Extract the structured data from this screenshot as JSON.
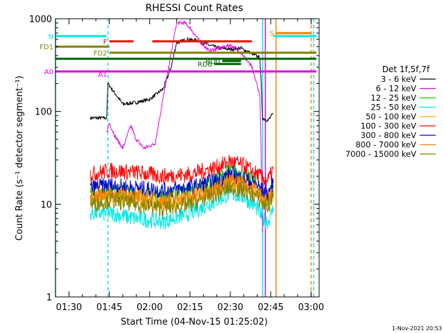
{
  "chart_data": {
    "type": "line",
    "title": "RHESSI Count Rates",
    "xlabel": "Start Time (04-Nov-15 01:25:02)",
    "ylabel": "Count Rate (s⁻¹ detector segment⁻¹)",
    "yscale": "log",
    "ylim": [
      1,
      1000
    ],
    "xlim": [
      "01:25",
      "03:03"
    ],
    "x_ticks": [
      "01:30",
      "01:45",
      "02:00",
      "02:15",
      "02:30",
      "02:45",
      "03:00"
    ],
    "y_ticks": [
      "1",
      "10",
      "100",
      "1000"
    ],
    "grid": false,
    "legend_title": "Det 1f,5f,7f",
    "legend_position": "right",
    "footer": "1-Nov-2021 20:53",
    "series": [
      {
        "name": "3 - 6 keV",
        "color": "#000000",
        "x": [
          "01:38",
          "01:41",
          "01:44",
          "01:44:30",
          "01:50",
          "01:55",
          "02:00",
          "02:05",
          "02:08",
          "02:10",
          "02:14",
          "02:18",
          "02:22",
          "02:26",
          "02:30",
          "02:34",
          "02:38",
          "02:41",
          "02:42",
          "02:44",
          "02:46"
        ],
        "y": [
          85,
          85,
          85,
          200,
          120,
          125,
          135,
          175,
          300,
          550,
          600,
          580,
          520,
          480,
          470,
          480,
          420,
          380,
          85,
          80,
          95
        ]
      },
      {
        "name": "6 - 12 keV",
        "color": "#e000e0",
        "x": [
          "01:44",
          "01:45",
          "01:47",
          "01:50",
          "01:53",
          "01:55",
          "01:58",
          "02:02",
          "02:06",
          "02:10",
          "02:13",
          "02:15",
          "02:18",
          "02:22",
          "02:26",
          "02:30",
          "02:34",
          "02:38",
          "02:41",
          "02:42"
        ],
        "y": [
          60,
          75,
          55,
          40,
          70,
          50,
          40,
          45,
          200,
          900,
          900,
          800,
          600,
          450,
          480,
          520,
          430,
          300,
          150,
          5
        ]
      },
      {
        "name": "12 - 25 keV",
        "color": "#00cc00",
        "x": [
          "01:38",
          "01:45",
          "01:55",
          "02:05",
          "02:15",
          "02:25",
          "02:30",
          "02:35",
          "02:40",
          "02:42",
          "02:44",
          "02:46"
        ],
        "y": [
          13,
          14,
          13,
          12,
          14,
          18,
          23,
          21,
          16,
          12,
          11,
          15
        ]
      },
      {
        "name": "25 - 50 keV",
        "color": "#00e8e8",
        "x": [
          "01:38",
          "01:45",
          "01:55",
          "02:05",
          "02:15",
          "02:25",
          "02:30",
          "02:35",
          "02:40",
          "02:42",
          "02:44",
          "02:46"
        ],
        "y": [
          8,
          8,
          7,
          6.5,
          8,
          11,
          13,
          12,
          9,
          7,
          6.5,
          9
        ]
      },
      {
        "name": "50 - 100 keV",
        "color": "#ffb000",
        "x": [
          "01:38",
          "01:45",
          "01:55",
          "02:05",
          "02:15",
          "02:25",
          "02:30",
          "02:35",
          "02:40",
          "02:42",
          "02:44",
          "02:46"
        ],
        "y": [
          11,
          12,
          11,
          10,
          11,
          14,
          17,
          16,
          13,
          11,
          10,
          13
        ]
      },
      {
        "name": "100 - 300 keV",
        "color": "#ff0000",
        "x": [
          "01:38",
          "01:45",
          "01:55",
          "02:05",
          "02:15",
          "02:25",
          "02:30",
          "02:35",
          "02:40",
          "02:42",
          "02:44",
          "02:46"
        ],
        "y": [
          21,
          23,
          22,
          20,
          21,
          25,
          29,
          26,
          21,
          19,
          18,
          24
        ]
      },
      {
        "name": "300 - 800 keV",
        "color": "#0000cc",
        "x": [
          "01:38",
          "01:45",
          "01:55",
          "02:05",
          "02:15",
          "02:25",
          "02:30",
          "02:35",
          "02:40",
          "02:42",
          "02:44",
          "02:46"
        ],
        "y": [
          15,
          16,
          15,
          14,
          15,
          18,
          21,
          19,
          16,
          14,
          13,
          17
        ]
      },
      {
        "name": "800 - 7000 keV",
        "color": "#ff7f00",
        "x": [
          "01:38",
          "01:45",
          "01:55",
          "02:05",
          "02:15",
          "02:25",
          "02:30",
          "02:35",
          "02:40",
          "02:42",
          "02:44",
          "02:46"
        ],
        "y": [
          12,
          13,
          12,
          11,
          12,
          15,
          18,
          17,
          14,
          12,
          11,
          14
        ]
      },
      {
        "name": "7000 - 15000 keV",
        "color": "#808000",
        "x": [
          "01:38",
          "01:45",
          "01:55",
          "02:05",
          "02:15",
          "02:25",
          "02:30",
          "02:35",
          "02:40",
          "02:42",
          "02:44",
          "02:46"
        ],
        "y": [
          10,
          11,
          10,
          9,
          10,
          13,
          15,
          14,
          12,
          10,
          9.5,
          12
        ]
      }
    ],
    "flag_bars": [
      {
        "label": "N",
        "color": "#00e8e8",
        "x1": "01:25",
        "x2": "01:44",
        "y": 650
      },
      {
        "label": "",
        "color": "#00e8e8",
        "x1": "02:46",
        "x2": "03:02",
        "y": 650
      },
      {
        "label": "S",
        "color": "#ff7f00",
        "x1": "02:47",
        "x2": "03:00",
        "y": 700
      },
      {
        "label": "F",
        "color": "#ff0000",
        "x1": "01:45",
        "x2": "01:54",
        "y": 570
      },
      {
        "label": "",
        "color": "#ff0000",
        "x1": "02:01",
        "x2": "02:38",
        "y": 570
      },
      {
        "label": "FD1",
        "color": "#808000",
        "x1": "01:25",
        "x2": "01:45",
        "y": 500
      },
      {
        "label": "FD2",
        "color": "#808000",
        "x1": "01:45",
        "x2": "03:02",
        "y": 430
      },
      {
        "label": "RD0",
        "color": "#006400",
        "x1": "02:27",
        "x2": "02:34",
        "y": 350
      },
      {
        "label": "",
        "color": "#006400",
        "x1": "01:25",
        "x2": "03:02",
        "y": 370
      },
      {
        "label": "RD6",
        "color": "#006400",
        "x1": "02:24",
        "x2": "02:34",
        "y": 325
      },
      {
        "label": "A0",
        "color": "#e000e0",
        "x1": "01:25",
        "x2": "03:02",
        "y": 270
      },
      {
        "label": "A1",
        "color": "#e000e0",
        "x1": "01:45",
        "x2": "01:45",
        "y": 255
      }
    ],
    "vertical_markers": [
      {
        "x": "01:25",
        "color": "#00e8e8",
        "style": "solid"
      },
      {
        "x": "01:44:30",
        "color": "#00e8e8",
        "style": "dashed"
      },
      {
        "x": "02:42",
        "color": "#00e8e8",
        "style": "solid"
      },
      {
        "x": "02:43",
        "color": "#e000e0",
        "style": "solid"
      },
      {
        "x": "02:47",
        "color": "#ff7f00",
        "style": "solid"
      },
      {
        "x": "03:00",
        "color": "#ff7f00",
        "style": "dashed"
      },
      {
        "x": "03:01",
        "color": "#00e8e8",
        "style": "dashed"
      }
    ]
  }
}
